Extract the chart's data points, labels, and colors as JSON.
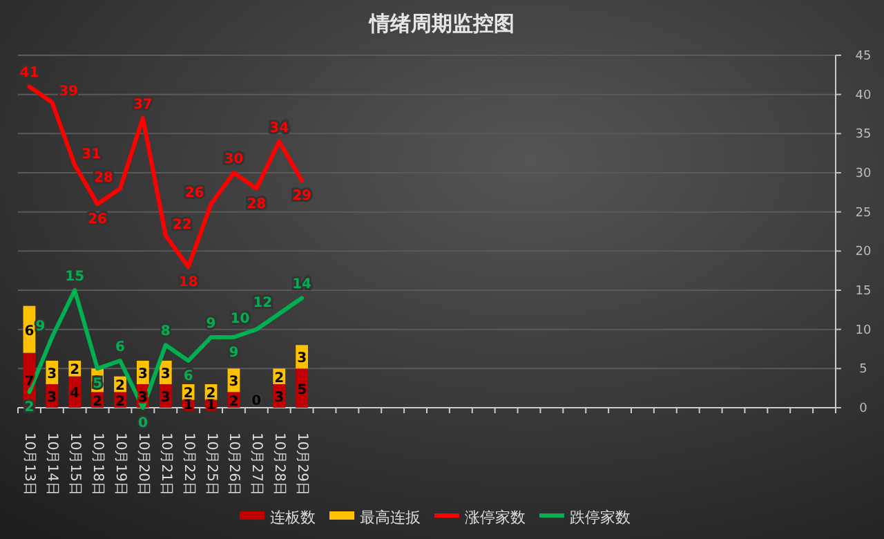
{
  "chart_data": {
    "type": "bar",
    "title": "情绪周期监控图",
    "stacked": true,
    "grid": "y",
    "legend": "bottom",
    "data_labels": true,
    "categories": [
      "10月13日",
      "10月14日",
      "10月15日",
      "10月18日",
      "10月19日",
      "10月20日",
      "10月21日",
      "10月22日",
      "10月25日",
      "10月26日",
      "10月27日",
      "10月28日",
      "10月29日",
      null,
      null,
      null,
      null,
      null,
      null,
      null,
      null,
      null,
      null,
      null,
      null,
      null,
      null,
      null,
      null,
      null,
      null,
      null,
      null,
      null,
      null,
      null
    ],
    "series": [
      {
        "name": "连板数",
        "color": "#c00000",
        "values": [
          7,
          3,
          4,
          2,
          2,
          3,
          3,
          1,
          1,
          2,
          0,
          3,
          5,
          null,
          null,
          null,
          null,
          null,
          null,
          null,
          null,
          null,
          null,
          null,
          null,
          null,
          null,
          null,
          null,
          null,
          null,
          null,
          null,
          null,
          null,
          null
        ]
      },
      {
        "name": "最高连扳",
        "color": "#ffc000",
        "values": [
          6,
          3,
          2,
          3,
          2,
          3,
          3,
          2,
          2,
          3,
          null,
          2,
          3,
          null,
          null,
          null,
          null,
          null,
          null,
          null,
          null,
          null,
          null,
          null,
          null,
          null,
          null,
          null,
          null,
          null,
          null,
          null,
          null,
          null,
          null,
          null
        ]
      },
      {
        "name": "涨停家数",
        "type": "line",
        "color": "#ff0000",
        "values": [
          41,
          39,
          31,
          26,
          28,
          37,
          22,
          18,
          26,
          30,
          28,
          34,
          29,
          null,
          null,
          null,
          null,
          null,
          null,
          null,
          null,
          null,
          null,
          null,
          null,
          null,
          null,
          null,
          null,
          null,
          null,
          null,
          null,
          null,
          null,
          null
        ]
      },
      {
        "name": "跌停家数",
        "type": "line",
        "color": "#00b050",
        "values": [
          2,
          9,
          15,
          5,
          6,
          0,
          8,
          6,
          9,
          9,
          10,
          12,
          14,
          null,
          null,
          null,
          null,
          null,
          null,
          null,
          null,
          null,
          null,
          null,
          null,
          null,
          null,
          null,
          null,
          null,
          null,
          null,
          null,
          null,
          null,
          null
        ]
      }
    ],
    "ylim": [
      0,
      45
    ],
    "yticks": [
      0,
      5,
      10,
      15,
      20,
      25,
      30,
      35,
      40,
      45
    ]
  }
}
